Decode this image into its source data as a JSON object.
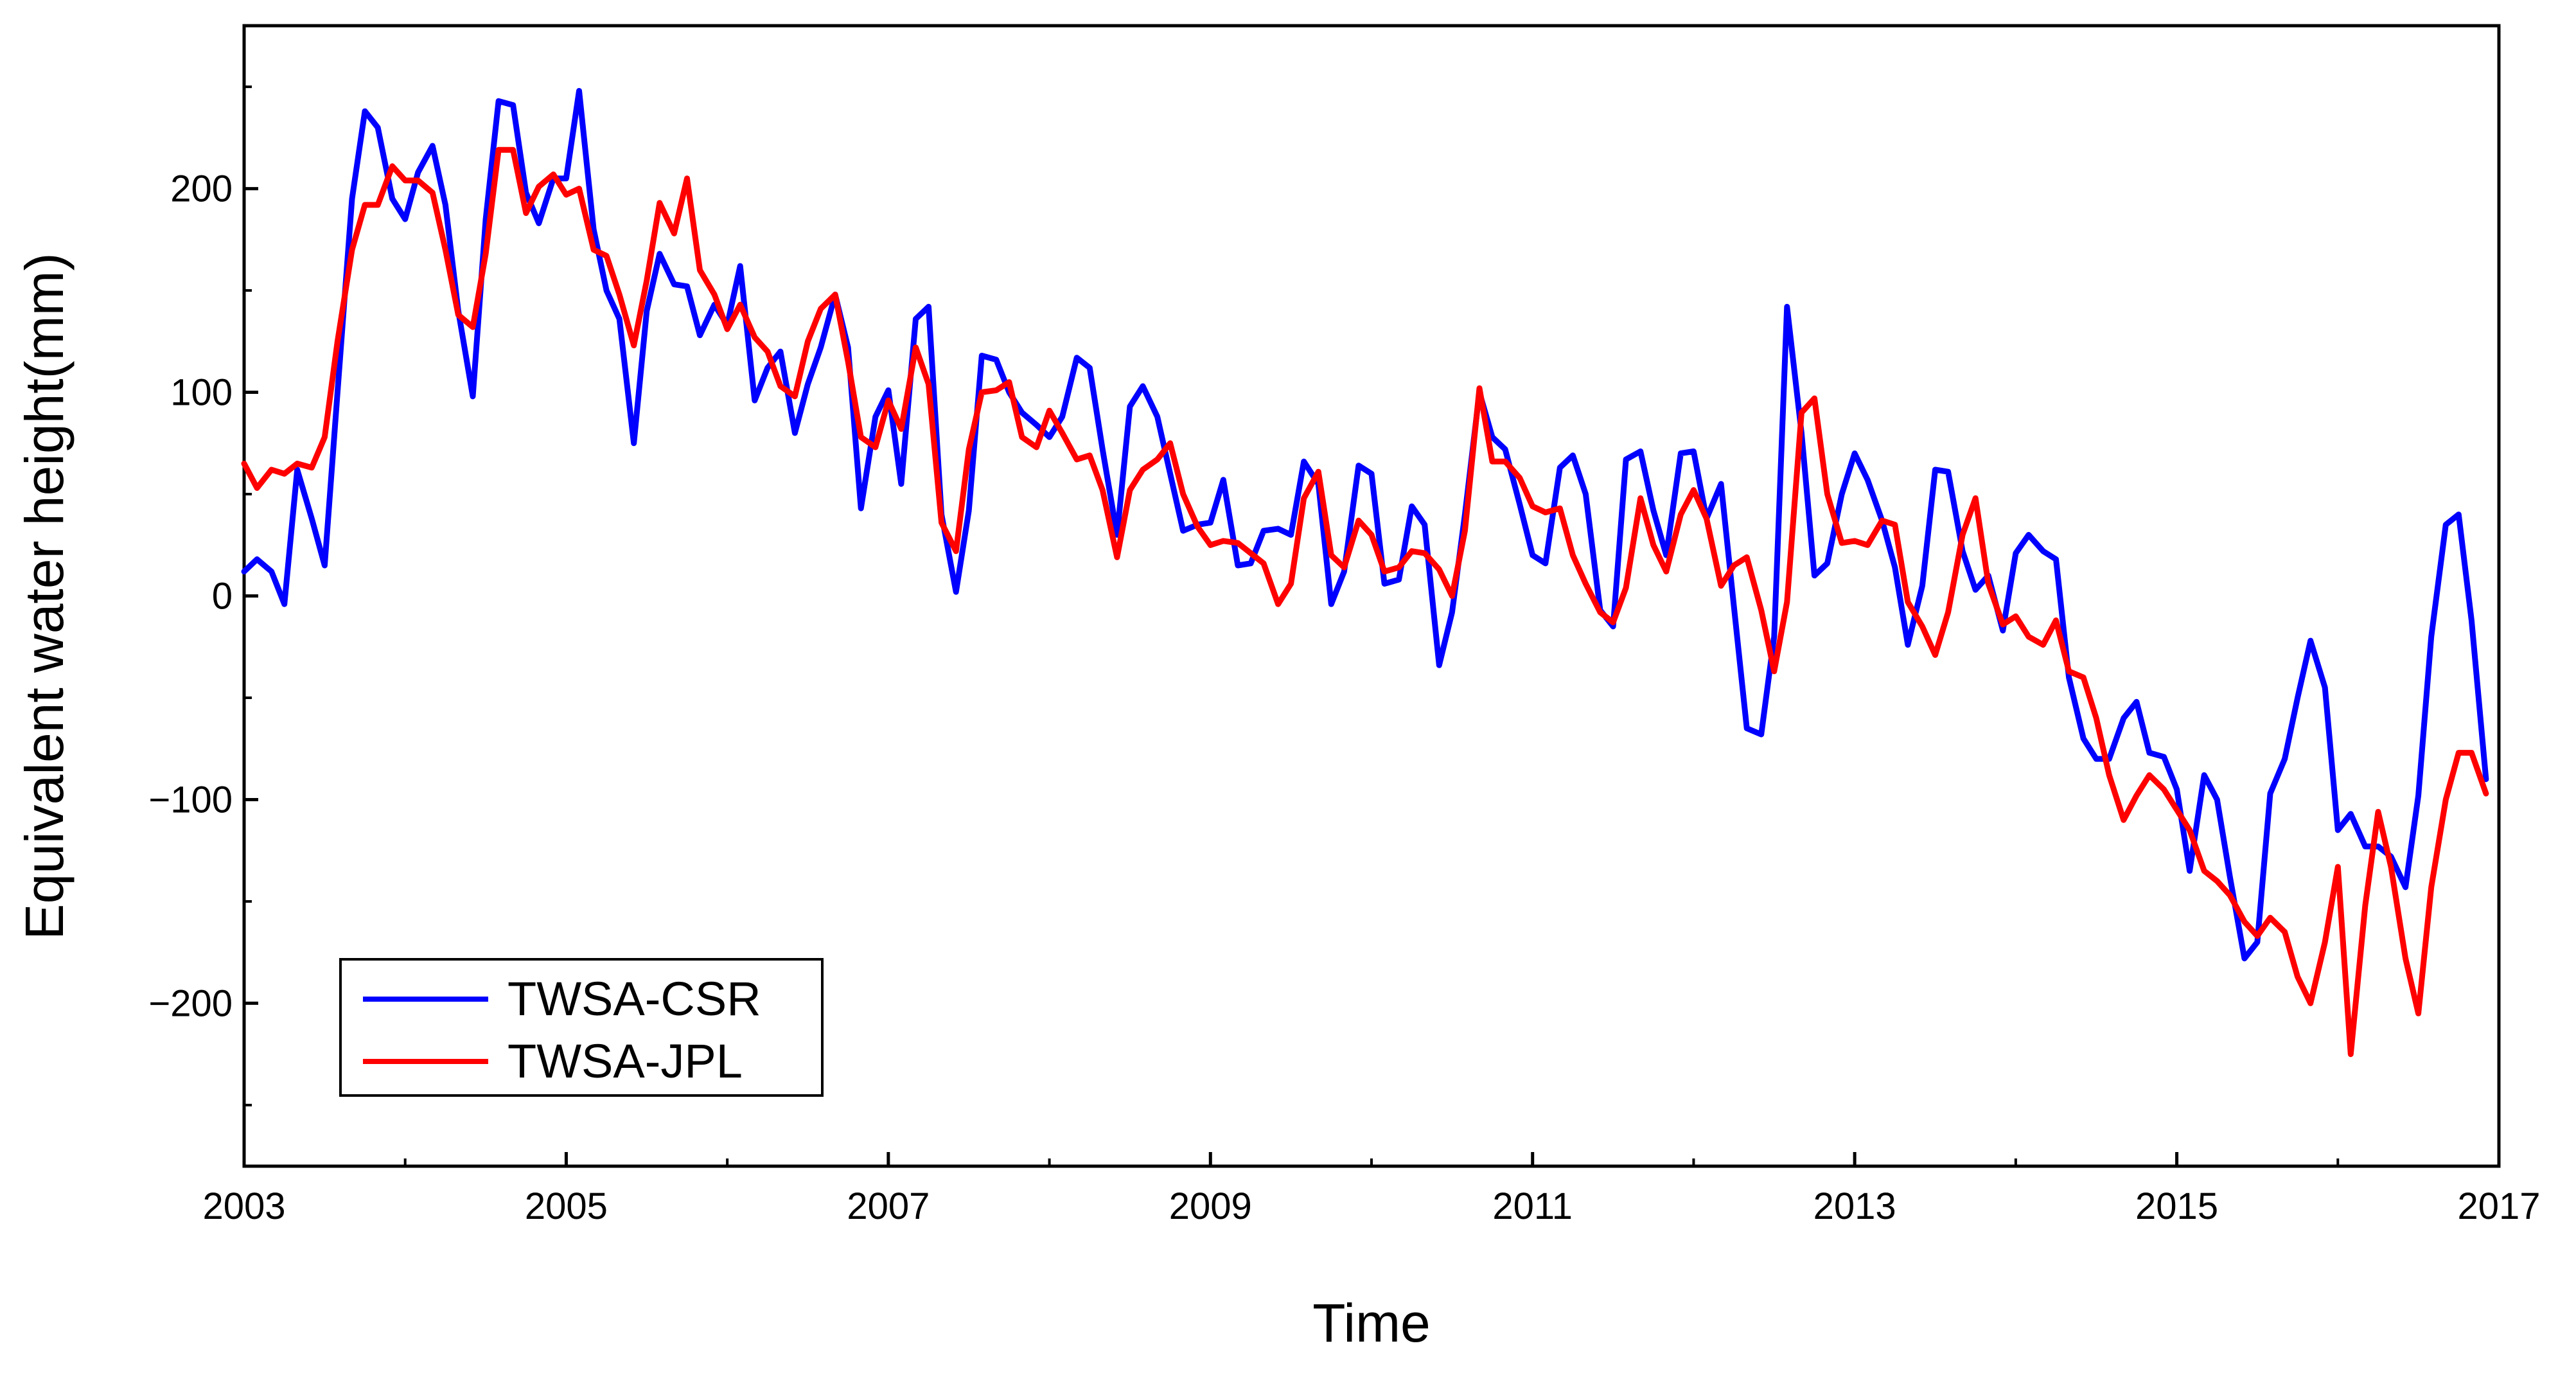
{
  "chart_data": {
    "type": "line",
    "title": "",
    "xlabel": "Time",
    "ylabel": "Equivalent water height(mm)",
    "xlim": [
      2003,
      2017
    ],
    "ylim": [
      -280,
      280
    ],
    "xticks": [
      2003,
      2005,
      2007,
      2009,
      2011,
      2013,
      2015,
      2017
    ],
    "xtick_labels": [
      "2003",
      "2005",
      "2007",
      "2009",
      "2011",
      "2013",
      "2015",
      "2017"
    ],
    "yticks": [
      -200,
      -100,
      0,
      100,
      200
    ],
    "ytick_labels": [
      "−200",
      "−100",
      "0",
      "100",
      "200"
    ],
    "grid": false,
    "legend_position": "bottom-left",
    "series": [
      {
        "name": "TWSA-CSR",
        "color": "#0000ff",
        "x": [
          2003.0,
          2003.08,
          2003.17,
          2003.25,
          2003.33,
          2003.42,
          2003.5,
          2003.58,
          2003.67,
          2003.75,
          2003.83,
          2003.92,
          2004.0,
          2004.08,
          2004.17,
          2004.25,
          2004.33,
          2004.42,
          2004.5,
          2004.58,
          2004.67,
          2004.75,
          2004.83,
          2004.92,
          2005.0,
          2005.08,
          2005.17,
          2005.25,
          2005.33,
          2005.42,
          2005.5,
          2005.58,
          2005.67,
          2005.75,
          2005.83,
          2005.92,
          2006.0,
          2006.08,
          2006.17,
          2006.25,
          2006.33,
          2006.42,
          2006.5,
          2006.58,
          2006.67,
          2006.75,
          2006.83,
          2006.92,
          2007.0,
          2007.08,
          2007.17,
          2007.25,
          2007.33,
          2007.42,
          2007.5,
          2007.58,
          2007.67,
          2007.75,
          2007.83,
          2007.92,
          2008.0,
          2008.08,
          2008.17,
          2008.25,
          2008.33,
          2008.42,
          2008.5,
          2008.58,
          2008.67,
          2008.75,
          2008.83,
          2008.92,
          2009.0,
          2009.08,
          2009.17,
          2009.25,
          2009.33,
          2009.42,
          2009.5,
          2009.58,
          2009.67,
          2009.75,
          2009.83,
          2009.92,
          2010.0,
          2010.08,
          2010.17,
          2010.25,
          2010.33,
          2010.42,
          2010.5,
          2010.58,
          2010.67,
          2010.75,
          2010.83,
          2010.92,
          2011.0,
          2011.08,
          2011.17,
          2011.25,
          2011.33,
          2011.42,
          2011.5,
          2011.58,
          2011.67,
          2011.75,
          2011.83,
          2011.92,
          2012.0,
          2012.08,
          2012.17,
          2012.25,
          2012.33,
          2012.42,
          2012.5,
          2012.58,
          2012.67,
          2012.75,
          2012.83,
          2012.92,
          2013.0,
          2013.08,
          2013.17,
          2013.25,
          2013.33,
          2013.42,
          2013.5,
          2013.58,
          2013.67,
          2013.75,
          2013.83,
          2013.92,
          2014.0,
          2014.08,
          2014.17,
          2014.25,
          2014.33,
          2014.42,
          2014.5,
          2014.58,
          2014.67,
          2014.75,
          2014.83,
          2014.92,
          2015.0,
          2015.08,
          2015.17,
          2015.25,
          2015.33,
          2015.42,
          2015.5,
          2015.58,
          2015.67,
          2015.75,
          2015.83,
          2015.92,
          2016.0,
          2016.08,
          2016.17,
          2016.25,
          2016.33,
          2016.42,
          2016.5,
          2016.58,
          2016.67,
          2016.75,
          2016.83,
          2016.92
        ],
        "values": [
          12,
          18,
          12,
          -4,
          62,
          38,
          15,
          100,
          195,
          238,
          230,
          195,
          185,
          208,
          221,
          192,
          140,
          98,
          185,
          243,
          241,
          198,
          183,
          205,
          205,
          248,
          180,
          150,
          136,
          75,
          140,
          168,
          153,
          152,
          128,
          143,
          133,
          162,
          96,
          112,
          120,
          80,
          104,
          122,
          148,
          122,
          43,
          88,
          101,
          55,
          136,
          142,
          40,
          2,
          42,
          118,
          116,
          100,
          90,
          84,
          78,
          88,
          117,
          112,
          72,
          30,
          93,
          103,
          88,
          60,
          32,
          35,
          36,
          57,
          15,
          16,
          32,
          33,
          30,
          66,
          55,
          -4,
          12,
          64,
          60,
          6,
          8,
          44,
          35,
          -34,
          -8,
          40,
          100,
          78,
          72,
          45,
          20,
          16,
          63,
          69,
          50,
          -7,
          -15,
          67,
          71,
          42,
          20,
          70,
          71,
          38,
          55,
          -5,
          -65,
          -68,
          -20,
          142,
          80,
          10,
          16,
          50,
          70,
          57,
          37,
          14,
          -24,
          5,
          62,
          61,
          22,
          3,
          10,
          -17,
          21,
          30,
          22,
          18,
          -40,
          -70,
          -80,
          -80,
          -60,
          -52,
          -77,
          -79,
          -95,
          -135,
          -88,
          -100,
          -138,
          -178,
          -170,
          -97,
          -80,
          -50,
          -22,
          -45,
          -115,
          -107,
          -123,
          -123,
          -128,
          -143,
          -98,
          -20,
          35,
          40,
          -12,
          -90
        ]
      },
      {
        "name": "TWSA-JPL",
        "color": "#ff0000",
        "x": [
          2003.0,
          2003.08,
          2003.17,
          2003.25,
          2003.33,
          2003.42,
          2003.5,
          2003.58,
          2003.67,
          2003.75,
          2003.83,
          2003.92,
          2004.0,
          2004.08,
          2004.17,
          2004.25,
          2004.33,
          2004.42,
          2004.5,
          2004.58,
          2004.67,
          2004.75,
          2004.83,
          2004.92,
          2005.0,
          2005.08,
          2005.17,
          2005.25,
          2005.33,
          2005.42,
          2005.5,
          2005.58,
          2005.67,
          2005.75,
          2005.83,
          2005.92,
          2006.0,
          2006.08,
          2006.17,
          2006.25,
          2006.33,
          2006.42,
          2006.5,
          2006.58,
          2006.67,
          2006.75,
          2006.83,
          2006.92,
          2007.0,
          2007.08,
          2007.17,
          2007.25,
          2007.33,
          2007.42,
          2007.5,
          2007.58,
          2007.67,
          2007.75,
          2007.83,
          2007.92,
          2008.0,
          2008.08,
          2008.17,
          2008.25,
          2008.33,
          2008.42,
          2008.5,
          2008.58,
          2008.67,
          2008.75,
          2008.83,
          2008.92,
          2009.0,
          2009.08,
          2009.17,
          2009.25,
          2009.33,
          2009.42,
          2009.5,
          2009.58,
          2009.67,
          2009.75,
          2009.83,
          2009.92,
          2010.0,
          2010.08,
          2010.17,
          2010.25,
          2010.33,
          2010.42,
          2010.5,
          2010.58,
          2010.67,
          2010.75,
          2010.83,
          2010.92,
          2011.0,
          2011.08,
          2011.17,
          2011.25,
          2011.33,
          2011.42,
          2011.5,
          2011.58,
          2011.67,
          2011.75,
          2011.83,
          2011.92,
          2012.0,
          2012.08,
          2012.17,
          2012.25,
          2012.33,
          2012.42,
          2012.5,
          2012.58,
          2012.67,
          2012.75,
          2012.83,
          2012.92,
          2013.0,
          2013.08,
          2013.17,
          2013.25,
          2013.33,
          2013.42,
          2013.5,
          2013.58,
          2013.67,
          2013.75,
          2013.83,
          2013.92,
          2014.0,
          2014.08,
          2014.17,
          2014.25,
          2014.33,
          2014.42,
          2014.5,
          2014.58,
          2014.67,
          2014.75,
          2014.83,
          2014.92,
          2015.0,
          2015.08,
          2015.17,
          2015.25,
          2015.33,
          2015.42,
          2015.5,
          2015.58,
          2015.67,
          2015.75,
          2015.83,
          2015.92,
          2016.0,
          2016.08,
          2016.17,
          2016.25,
          2016.33,
          2016.42,
          2016.5,
          2016.58,
          2016.67,
          2016.75,
          2016.83,
          2016.92
        ],
        "values": [
          65,
          53,
          62,
          60,
          65,
          63,
          78,
          125,
          170,
          192,
          192,
          211,
          204,
          204,
          198,
          170,
          138,
          132,
          168,
          219,
          219,
          188,
          201,
          207,
          197,
          200,
          170,
          167,
          148,
          123,
          155,
          193,
          178,
          205,
          160,
          148,
          131,
          143,
          127,
          120,
          103,
          98,
          125,
          141,
          148,
          115,
          78,
          73,
          96,
          82,
          122,
          104,
          36,
          22,
          72,
          100,
          101,
          105,
          78,
          73,
          91,
          80,
          67,
          69,
          52,
          19,
          52,
          62,
          67,
          75,
          50,
          34,
          25,
          27,
          26,
          21,
          16,
          -4,
          6,
          48,
          61,
          20,
          14,
          37,
          30,
          12,
          14,
          22,
          21,
          13,
          0,
          32,
          102,
          66,
          66,
          58,
          44,
          41,
          43,
          20,
          6,
          -8,
          -13,
          4,
          48,
          25,
          12,
          40,
          52,
          38,
          5,
          15,
          19,
          -7,
          -37,
          -3,
          90,
          97,
          50,
          26,
          27,
          25,
          37,
          35,
          -3,
          -15,
          -29,
          -8,
          30,
          48,
          6,
          -14,
          -10,
          -20,
          -24,
          -12,
          -37,
          -40,
          -60,
          -88,
          -110,
          -98,
          -88,
          -95,
          -105,
          -115,
          -135,
          -140,
          -147,
          -160,
          -167,
          -158,
          -165,
          -187,
          -200,
          -170,
          -133,
          -225,
          -152,
          -106,
          -133,
          -178,
          -205,
          -143,
          -100,
          -77,
          -77,
          -97
        ]
      }
    ]
  }
}
